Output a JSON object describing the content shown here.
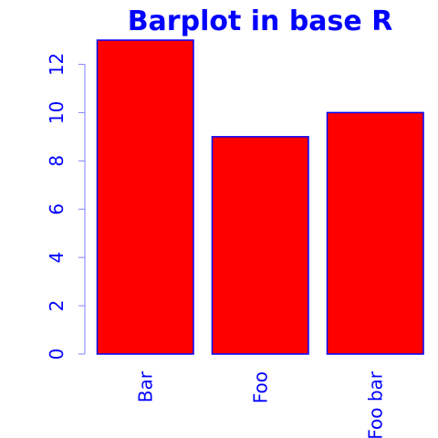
{
  "colors": {
    "bar_fill": "#ff0000",
    "bar_border": "#0000ff",
    "title": "#0000ff",
    "axis_text": "#0000ff",
    "axis_line": "#8080ff",
    "background": "#ffffff"
  },
  "chart_data": {
    "type": "bar",
    "title": "Barplot in base R",
    "xlabel": "",
    "ylabel": "",
    "categories": [
      "Bar",
      "Foo",
      "Foo bar"
    ],
    "values": [
      13,
      9,
      10
    ],
    "ylim": [
      0,
      13
    ],
    "yticks": [
      0,
      2,
      4,
      6,
      8,
      10,
      12
    ],
    "x_tick_labels_rotated": true,
    "y_tick_labels_rotated": true,
    "grid": false,
    "legend": "none"
  }
}
